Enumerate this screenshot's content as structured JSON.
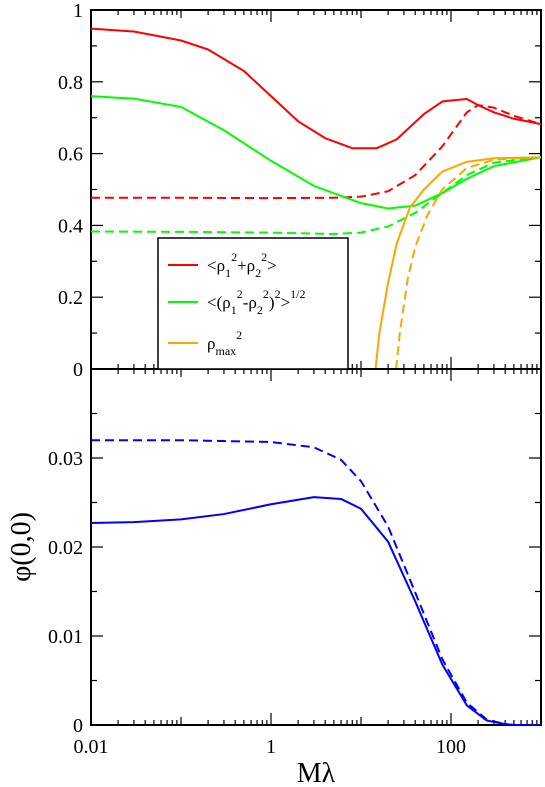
{
  "chart_data": [
    {
      "type": "line",
      "xscale": "log",
      "xlim": [
        0.01,
        1000
      ],
      "ylim": [
        0,
        1
      ],
      "yticks": [
        "0",
        "0.2",
        "0.4",
        "0.6",
        "0.8",
        "1"
      ],
      "ylabel": "",
      "legend": {
        "placement": "lower-left",
        "entries": [
          {
            "base": "<ρ",
            "s1": "1",
            "p1": "2",
            "mid": "+ρ",
            "s2": "2",
            "p2": "2",
            "end": ">",
            "color": "#ff0000"
          },
          {
            "base": "<(ρ",
            "s1": "1",
            "p1": "2",
            "mid": "-ρ",
            "s2": "2",
            "p2": "2",
            "end": ")",
            "p3": "2",
            "end2": ">",
            "p4": "1/2",
            "color": "#00ff00"
          },
          {
            "base": "ρ",
            "s1": "max",
            "p1": "2",
            "color": "#ffa500"
          }
        ]
      },
      "series": [
        {
          "color": "#ff0000",
          "style": "solid",
          "x": [
            0.01,
            0.03,
            0.1,
            0.2,
            0.5,
            1,
            2,
            4,
            8,
            15,
            25,
            50,
            80,
            100,
            150,
            200,
            300,
            500,
            1000
          ],
          "y": [
            0.948,
            0.94,
            0.915,
            0.89,
            0.83,
            0.76,
            0.69,
            0.643,
            0.615,
            0.615,
            0.64,
            0.71,
            0.745,
            0.748,
            0.752,
            0.735,
            0.715,
            0.697,
            0.682
          ]
        },
        {
          "color": "#ff0000",
          "style": "dashed",
          "x": [
            0.01,
            0.1,
            1,
            5,
            10,
            20,
            40,
            80,
            150,
            200,
            300,
            500,
            1000
          ],
          "y": [
            0.477,
            0.477,
            0.476,
            0.477,
            0.48,
            0.495,
            0.54,
            0.62,
            0.715,
            0.735,
            0.728,
            0.705,
            0.682
          ]
        },
        {
          "color": "#00ff00",
          "style": "solid",
          "x": [
            0.01,
            0.03,
            0.1,
            0.3,
            1,
            3,
            10,
            20,
            40,
            80,
            150,
            300,
            1000
          ],
          "y": [
            0.76,
            0.753,
            0.73,
            0.665,
            0.58,
            0.51,
            0.462,
            0.447,
            0.455,
            0.49,
            0.53,
            0.565,
            0.59
          ]
        },
        {
          "color": "#00ff00",
          "style": "dashed",
          "x": [
            0.01,
            0.1,
            1,
            5,
            10,
            20,
            40,
            80,
            150,
            300,
            1000
          ],
          "y": [
            0.383,
            0.382,
            0.38,
            0.376,
            0.38,
            0.397,
            0.435,
            0.49,
            0.54,
            0.575,
            0.59
          ]
        },
        {
          "color": "#ffa500",
          "style": "solid",
          "x": [
            14.5,
            16,
            20,
            25,
            35,
            50,
            80,
            150,
            300,
            1000
          ],
          "y": [
            0,
            0.1,
            0.24,
            0.35,
            0.45,
            0.5,
            0.55,
            0.577,
            0.587,
            0.59
          ]
        },
        {
          "color": "#ffa500",
          "style": "dashed",
          "x": [
            24.5,
            27,
            33,
            40,
            55,
            80,
            150,
            300,
            1000
          ],
          "y": [
            0,
            0.1,
            0.25,
            0.34,
            0.43,
            0.5,
            0.56,
            0.583,
            0.59
          ]
        }
      ]
    },
    {
      "type": "line",
      "xscale": "log",
      "xlim": [
        0.01,
        1000
      ],
      "ylim": [
        0,
        0.04
      ],
      "xticks": [
        "0.01",
        "1",
        "100"
      ],
      "yticks": [
        "0",
        "0.01",
        "0.02",
        "0.03"
      ],
      "xlabel": "Mλ",
      "ylabel": "φ(0,0)",
      "series": [
        {
          "color": "#0000ff",
          "style": "solid",
          "x": [
            0.01,
            0.03,
            0.1,
            0.3,
            1,
            3,
            6,
            10,
            20,
            40,
            80,
            150,
            250,
            400,
            500,
            1000
          ],
          "y": [
            0.0227,
            0.0228,
            0.0231,
            0.0237,
            0.0248,
            0.0256,
            0.0254,
            0.0243,
            0.0206,
            0.0139,
            0.0068,
            0.0022,
            0.0005,
            0.0001,
            0.0,
            0.0
          ]
        },
        {
          "color": "#0000ff",
          "style": "dashed",
          "x": [
            0.01,
            0.1,
            1,
            3,
            6,
            10,
            20,
            40,
            80,
            150,
            250,
            400,
            500,
            1000
          ],
          "y": [
            0.032,
            0.032,
            0.0318,
            0.0312,
            0.0298,
            0.0274,
            0.0223,
            0.0149,
            0.0074,
            0.0025,
            0.0006,
            0.0001,
            0.0,
            0.0
          ]
        }
      ]
    }
  ]
}
